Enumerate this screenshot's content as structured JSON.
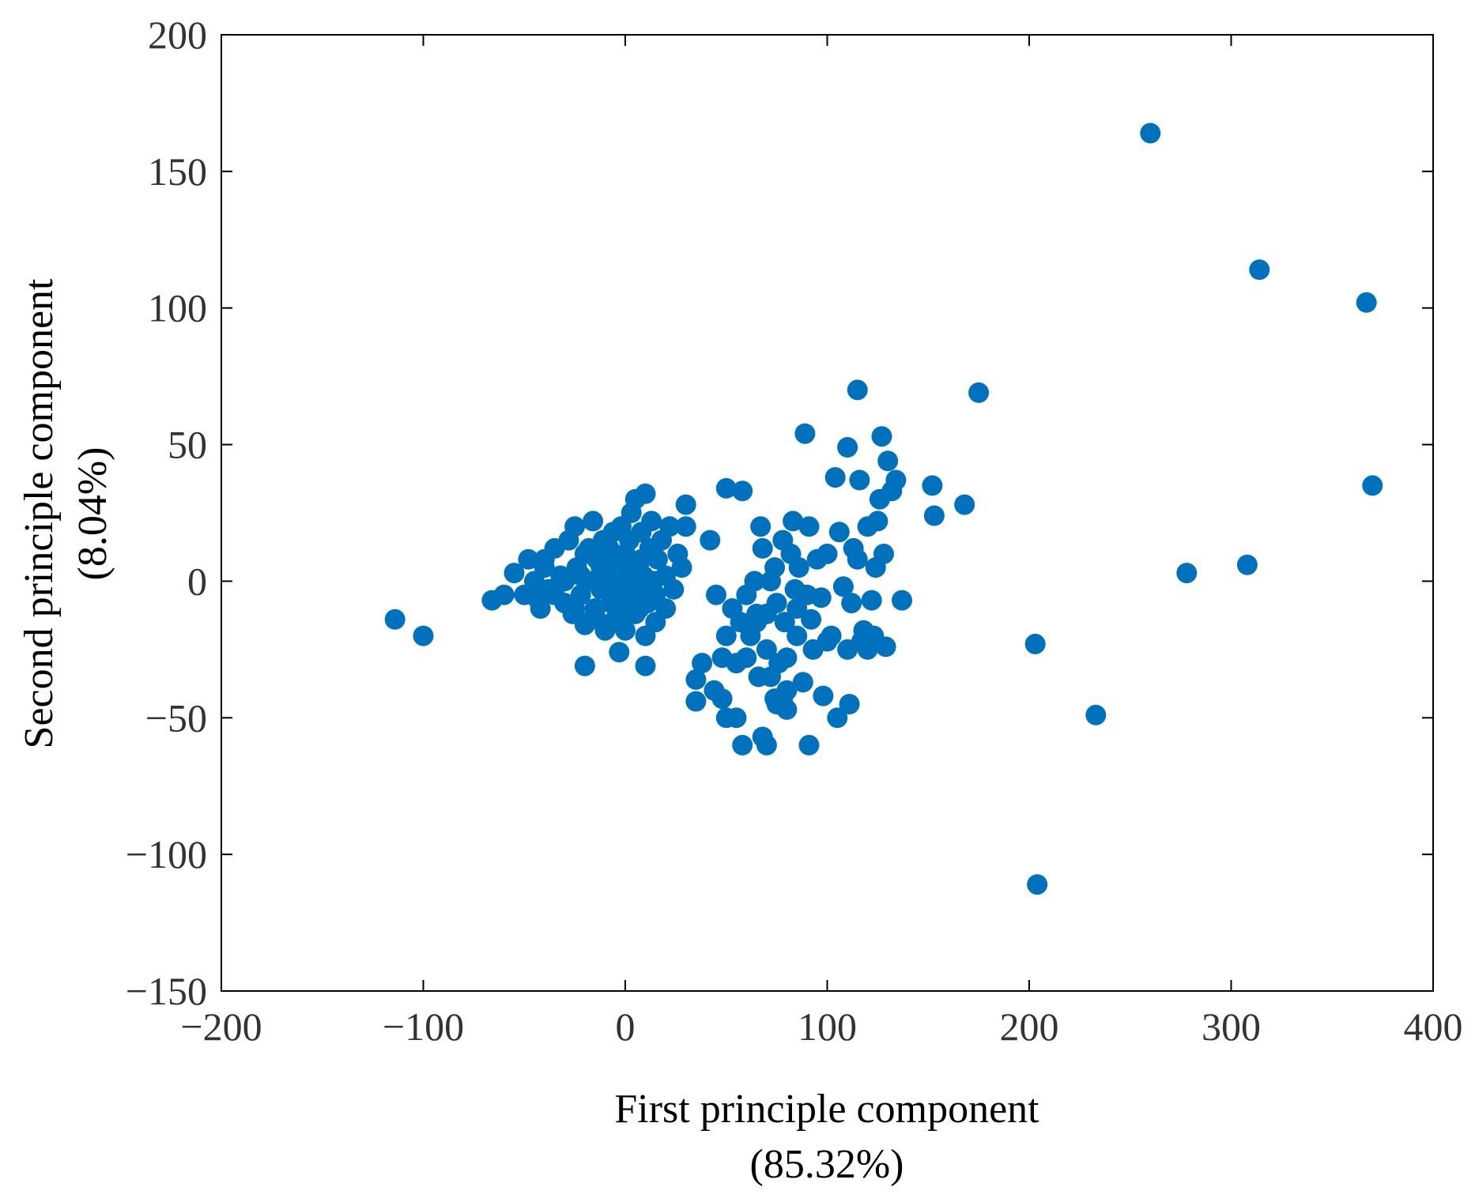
{
  "chart_data": {
    "type": "scatter",
    "xlabel": [
      "First principle component",
      "(85.32%)"
    ],
    "ylabel": [
      "Second principle component",
      "(8.04%)"
    ],
    "xlim": [
      -200,
      400
    ],
    "ylim": [
      -150,
      200
    ],
    "xticks": [
      -200,
      -100,
      0,
      100,
      200,
      300,
      400
    ],
    "yticks": [
      -150,
      -100,
      -50,
      0,
      50,
      100,
      150,
      200
    ],
    "xtick_labels": [
      "−200",
      "−100",
      "0",
      "100",
      "200",
      "300",
      "400"
    ],
    "ytick_labels": [
      "−150",
      "−100",
      "−50",
      "0",
      "50",
      "100",
      "150",
      "200"
    ],
    "grid": false,
    "marker_color": "#0072BD",
    "series": [
      {
        "points": [
          [
            -114,
            -14
          ],
          [
            -100,
            -20
          ],
          [
            -66,
            -7
          ],
          [
            -60,
            -5
          ],
          [
            -55,
            3
          ],
          [
            -50,
            -5
          ],
          [
            -48,
            8
          ],
          [
            -45,
            0
          ],
          [
            -42,
            -10
          ],
          [
            -40,
            5
          ],
          [
            -38,
            -3
          ],
          [
            -35,
            12
          ],
          [
            -32,
            2
          ],
          [
            -30,
            -8
          ],
          [
            -28,
            15
          ],
          [
            -26,
            -12
          ],
          [
            -25,
            20
          ],
          [
            -24,
            5
          ],
          [
            -22,
            -5
          ],
          [
            -20,
            10
          ],
          [
            -19,
            -15
          ],
          [
            -18,
            0
          ],
          [
            -16,
            22
          ],
          [
            -15,
            -10
          ],
          [
            -14,
            8
          ],
          [
            -12,
            -3
          ],
          [
            -11,
            15
          ],
          [
            -10,
            -18
          ],
          [
            -9,
            3
          ],
          [
            -8,
            12
          ],
          [
            -7,
            -8
          ],
          [
            -6,
            18
          ],
          [
            -5,
            -2
          ],
          [
            -4,
            7
          ],
          [
            -3,
            -12
          ],
          [
            -2,
            20
          ],
          [
            -1,
            0
          ],
          [
            0,
            10
          ],
          [
            1,
            -6
          ],
          [
            2,
            15
          ],
          [
            3,
            25
          ],
          [
            4,
            -4
          ],
          [
            5,
            30
          ],
          [
            6,
            5
          ],
          [
            7,
            -10
          ],
          [
            8,
            18
          ],
          [
            9,
            2
          ],
          [
            10,
            32
          ],
          [
            11,
            -8
          ],
          [
            12,
            12
          ],
          [
            13,
            22
          ],
          [
            14,
            0
          ],
          [
            15,
            -5
          ],
          [
            16,
            8
          ],
          [
            18,
            15
          ],
          [
            20,
            2
          ],
          [
            22,
            20
          ],
          [
            24,
            -3
          ],
          [
            26,
            10
          ],
          [
            28,
            5
          ],
          [
            30,
            20
          ],
          [
            30,
            28
          ],
          [
            20,
            -10
          ],
          [
            15,
            -15
          ],
          [
            10,
            -20
          ],
          [
            5,
            -12
          ],
          [
            0,
            -18
          ],
          [
            -5,
            -14
          ],
          [
            -10,
            -16
          ],
          [
            -15,
            -12
          ],
          [
            -20,
            -16
          ],
          [
            -25,
            -10
          ],
          [
            -30,
            0
          ],
          [
            -35,
            -5
          ],
          [
            -40,
            8
          ],
          [
            -44,
            -6
          ],
          [
            -20,
            -31
          ],
          [
            -3,
            -26
          ],
          [
            10,
            -31
          ],
          [
            -12,
            5
          ],
          [
            -8,
            0
          ],
          [
            -6,
            10
          ],
          [
            -2,
            -8
          ],
          [
            2,
            3
          ],
          [
            6,
            -2
          ],
          [
            -18,
            12
          ],
          [
            -22,
            2
          ],
          [
            8,
            8
          ],
          [
            42,
            15
          ],
          [
            45,
            -5
          ],
          [
            48,
            -28
          ],
          [
            50,
            -20
          ],
          [
            50,
            34
          ],
          [
            53,
            -10
          ],
          [
            55,
            -30
          ],
          [
            57,
            -15
          ],
          [
            58,
            33
          ],
          [
            60,
            -5
          ],
          [
            62,
            -20
          ],
          [
            64,
            0
          ],
          [
            65,
            -12
          ],
          [
            66,
            -35
          ],
          [
            67,
            20
          ],
          [
            68,
            12
          ],
          [
            70,
            -25
          ],
          [
            72,
            0
          ],
          [
            74,
            5
          ],
          [
            75,
            -8
          ],
          [
            76,
            -30
          ],
          [
            78,
            15
          ],
          [
            79,
            -15
          ],
          [
            80,
            -40
          ],
          [
            82,
            10
          ],
          [
            83,
            22
          ],
          [
            84,
            -3
          ],
          [
            85,
            -20
          ],
          [
            86,
            5
          ],
          [
            88,
            -37
          ],
          [
            89,
            54
          ],
          [
            90,
            -5
          ],
          [
            91,
            20
          ],
          [
            92,
            -14
          ],
          [
            93,
            -25
          ],
          [
            95,
            8
          ],
          [
            97,
            -6
          ],
          [
            98,
            -42
          ],
          [
            100,
            10
          ],
          [
            102,
            -20
          ],
          [
            104,
            38
          ],
          [
            105,
            -50
          ],
          [
            106,
            18
          ],
          [
            108,
            -2
          ],
          [
            110,
            49
          ],
          [
            111,
            -45
          ],
          [
            112,
            -8
          ],
          [
            113,
            12
          ],
          [
            115,
            70
          ],
          [
            116,
            37
          ],
          [
            117,
            -22
          ],
          [
            118,
            -18
          ],
          [
            120,
            20
          ],
          [
            122,
            -7
          ],
          [
            123,
            -20
          ],
          [
            124,
            5
          ],
          [
            125,
            22
          ],
          [
            126,
            30
          ],
          [
            127,
            53
          ],
          [
            128,
            10
          ],
          [
            129,
            -24
          ],
          [
            130,
            44
          ],
          [
            132,
            33
          ],
          [
            134,
            37
          ],
          [
            137,
            -7
          ],
          [
            152,
            35
          ],
          [
            153,
            24
          ],
          [
            168,
            28
          ],
          [
            175,
            69
          ],
          [
            35,
            -44
          ],
          [
            35,
            -36
          ],
          [
            38,
            -30
          ],
          [
            44,
            -40
          ],
          [
            48,
            -43
          ],
          [
            50,
            -50
          ],
          [
            55,
            -50
          ],
          [
            58,
            -60
          ],
          [
            68,
            -57
          ],
          [
            70,
            -60
          ],
          [
            74,
            -43
          ],
          [
            78,
            -43
          ],
          [
            80,
            -47
          ],
          [
            91,
            -60
          ],
          [
            60,
            -28
          ],
          [
            65,
            -15
          ],
          [
            70,
            -12
          ],
          [
            72,
            -35
          ],
          [
            75,
            -45
          ],
          [
            80,
            -28
          ],
          [
            85,
            -10
          ],
          [
            88,
            -5
          ],
          [
            100,
            -22
          ],
          [
            110,
            -25
          ],
          [
            120,
            -25
          ],
          [
            115,
            8
          ],
          [
            260,
            164
          ],
          [
            314,
            114
          ],
          [
            367,
            102
          ],
          [
            370,
            35
          ],
          [
            203,
            -23
          ],
          [
            233,
            -49
          ],
          [
            278,
            3
          ],
          [
            308,
            6
          ],
          [
            204,
            -111
          ]
        ]
      }
    ]
  }
}
